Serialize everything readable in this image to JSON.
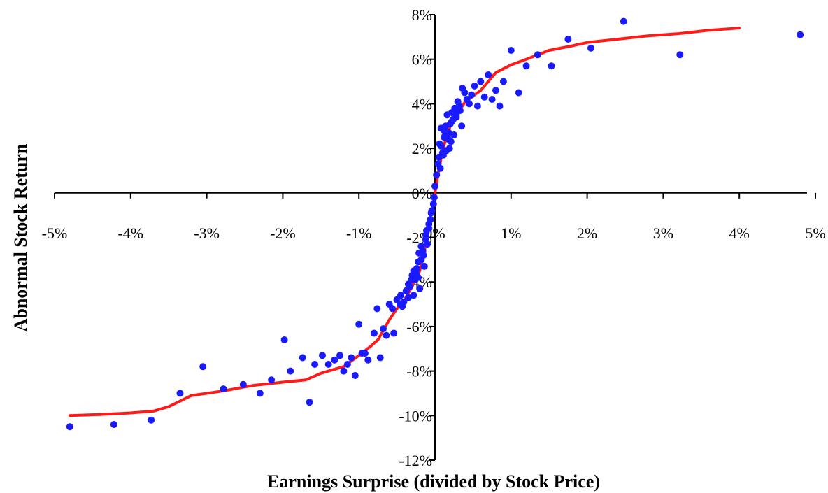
{
  "chart_data": {
    "type": "scatter",
    "xlabel": "Earnings Surprise (divided by Stock Price)",
    "ylabel": "Abnormal Stock Return",
    "xlim": [
      -5,
      5
    ],
    "ylim": [
      -12,
      8
    ],
    "x_unit": "%",
    "y_unit": "%",
    "x_ticks": [
      "-5%",
      "-4%",
      "-3%",
      "-2%",
      "-1%",
      "0%",
      "1%",
      "2%",
      "3%",
      "4%",
      "5%"
    ],
    "x_tick_values": [
      -5,
      -4,
      -3,
      -2,
      -1,
      0,
      1,
      2,
      3,
      4,
      5
    ],
    "y_ticks": [
      "8%",
      "6%",
      "4%",
      "2%",
      "0%",
      "-2%",
      "-4%",
      "-6%",
      "-8%",
      "-10%",
      "-12%"
    ],
    "y_tick_values": [
      8,
      6,
      4,
      2,
      0,
      -2,
      -4,
      -6,
      -8,
      -10,
      -12
    ],
    "grid": false,
    "legend": "none",
    "colors": {
      "points": "#1a1aff",
      "curve": "#ff1a1a",
      "axes": "#000000"
    },
    "series": [
      {
        "kind": "points",
        "x": [
          -4.8,
          -4.22,
          -3.73,
          -3.35,
          -3.05,
          -2.78,
          -2.52,
          -2.3,
          -2.15,
          -1.98,
          -1.9,
          -1.74,
          -1.65,
          -1.58,
          -1.48,
          -1.4,
          -1.32,
          -1.25,
          -1.2,
          -1.15,
          -1.1,
          -1.05,
          -1.0,
          -0.96,
          -0.92,
          -0.88,
          -0.8,
          -0.76,
          -0.72,
          -0.68,
          -0.64,
          -0.6,
          -0.56,
          -0.54,
          -0.5,
          -0.46,
          -0.43,
          -0.41,
          -0.38,
          -0.35,
          -0.33,
          -0.3,
          -0.28,
          -0.26,
          -0.24,
          -0.22,
          -0.2,
          -0.18,
          -0.16,
          -0.14,
          -0.12,
          -0.1,
          -0.08,
          -0.06,
          -0.04,
          -0.02,
          -0.01,
          0.0,
          0.02,
          0.04,
          0.06,
          0.08,
          0.1,
          0.12,
          0.14,
          0.16,
          0.18,
          0.2,
          0.22,
          0.24,
          0.26,
          0.28,
          0.3,
          0.33,
          0.36,
          0.39,
          0.42,
          0.45,
          0.48,
          0.52,
          0.56,
          0.6,
          0.65,
          0.7,
          0.75,
          0.8,
          0.85,
          0.9,
          1.0,
          1.1,
          1.2,
          1.35,
          1.53,
          1.75,
          2.05,
          2.48,
          3.22,
          4.8,
          0.15,
          0.25,
          0.35,
          0.05,
          0.08,
          0.12,
          0.18,
          0.22,
          0.28,
          0.32,
          -0.15,
          -0.25,
          -0.35,
          -0.45,
          -0.05,
          -0.08,
          -0.12,
          -0.18,
          -0.22,
          -0.28,
          0.07,
          0.11,
          0.19,
          0.21,
          0.29,
          -0.11,
          -0.21,
          -0.31
        ],
        "y": [
          -10.5,
          -10.4,
          -10.2,
          -9.0,
          -7.8,
          -8.8,
          -8.6,
          -9.0,
          -8.4,
          -6.6,
          -8.0,
          -7.4,
          -9.4,
          -7.7,
          -7.3,
          -7.7,
          -7.5,
          -7.3,
          -8.0,
          -7.7,
          -7.4,
          -8.2,
          -5.9,
          -7.2,
          -7.2,
          -7.5,
          -6.3,
          -5.2,
          -7.4,
          -6.1,
          -6.4,
          -5.0,
          -5.2,
          -6.3,
          -4.8,
          -5.0,
          -5.1,
          -4.9,
          -4.4,
          -4.7,
          -4.2,
          -3.7,
          -4.6,
          -3.9,
          -3.4,
          -3.8,
          -4.3,
          -3.0,
          -2.6,
          -3.3,
          -2.1,
          -2.3,
          -1.6,
          -1.2,
          -0.8,
          -0.5,
          -0.2,
          0.3,
          0.8,
          1.3,
          2.2,
          2.9,
          1.8,
          2.5,
          3.0,
          3.5,
          2.7,
          3.1,
          3.6,
          3.3,
          3.8,
          3.5,
          4.1,
          3.7,
          4.7,
          4.5,
          4.2,
          4.0,
          4.4,
          4.8,
          3.9,
          5.0,
          4.3,
          5.3,
          4.2,
          4.6,
          3.9,
          5.0,
          6.4,
          4.5,
          5.7,
          6.2,
          5.7,
          6.9,
          6.5,
          7.7,
          6.2,
          7.1,
          1.9,
          2.6,
          3.0,
          1.6,
          2.1,
          2.8,
          2.4,
          3.2,
          3.4,
          3.9,
          -2.8,
          -3.6,
          -4.1,
          -4.6,
          -0.9,
          -1.4,
          -1.9,
          -2.4,
          -3.1,
          -3.5,
          1.1,
          1.7,
          2.0,
          2.3,
          3.7,
          -1.7,
          -2.7,
          -3.9
        ]
      },
      {
        "kind": "curve",
        "x": [
          -4.8,
          -4.4,
          -4.0,
          -3.7,
          -3.5,
          -3.2,
          -2.8,
          -2.4,
          -2.0,
          -1.7,
          -1.5,
          -1.2,
          -1.0,
          -0.85,
          -0.75,
          -0.6,
          -0.5,
          -0.4,
          -0.3,
          -0.2,
          -0.15,
          -0.1,
          -0.05,
          0.0,
          0.05,
          0.1,
          0.15,
          0.2,
          0.3,
          0.4,
          0.5,
          0.6,
          0.7,
          0.8,
          1.0,
          1.2,
          1.5,
          1.8,
          2.0,
          2.4,
          2.8,
          3.2,
          3.6,
          4.0
        ],
        "y": [
          -10.0,
          -9.95,
          -9.88,
          -9.8,
          -9.6,
          -9.1,
          -8.9,
          -8.65,
          -8.5,
          -8.4,
          -8.1,
          -7.8,
          -7.3,
          -6.9,
          -6.6,
          -5.7,
          -5.2,
          -4.8,
          -4.2,
          -3.5,
          -2.8,
          -1.9,
          -0.9,
          0.0,
          1.0,
          1.9,
          2.5,
          3.0,
          3.6,
          4.1,
          4.35,
          4.6,
          5.0,
          5.4,
          5.75,
          6.0,
          6.4,
          6.6,
          6.75,
          6.9,
          7.05,
          7.15,
          7.3,
          7.4
        ]
      }
    ]
  }
}
